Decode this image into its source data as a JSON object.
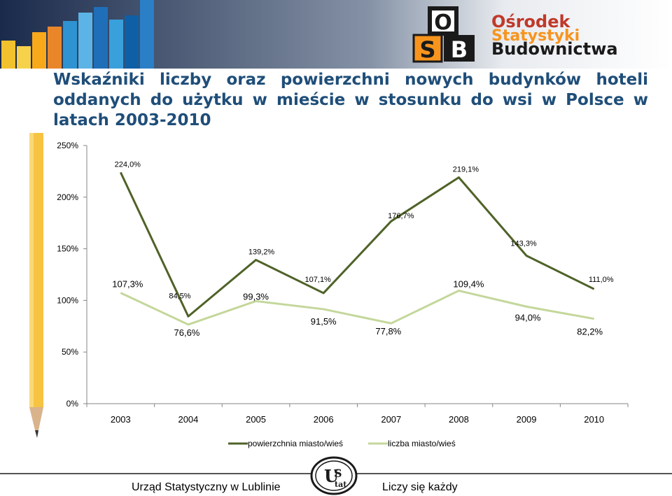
{
  "header": {
    "logo_text": [
      "Ośrodek",
      "Statystyki",
      "Budownictwa"
    ],
    "logo_letters": [
      "O",
      "S",
      "B"
    ]
  },
  "title": "Wskaźniki liczby oraz powierzchni nowych budynków hoteli oddanych do użytku w mieście w stosunku do wsi w Polsce w latach 2003-2010",
  "chart_data": {
    "type": "line",
    "categories": [
      "2003",
      "2004",
      "2005",
      "2006",
      "2007",
      "2008",
      "2009",
      "2010"
    ],
    "ylim": [
      0,
      250
    ],
    "yticks": [
      "0%",
      "50%",
      "100%",
      "150%",
      "200%",
      "250%"
    ],
    "ytick_values": [
      0,
      50,
      100,
      150,
      200,
      250
    ],
    "grid": false,
    "legend_position": "bottom",
    "series": [
      {
        "name": "powierzchnia miasto/wieś",
        "color": "#4f6228",
        "values": [
          224.0,
          84.5,
          139.2,
          107.1,
          176.7,
          219.1,
          143.3,
          111.0
        ],
        "labels": [
          "224,0%",
          "84,5%",
          "139,2%",
          "107,1%",
          "176,7%",
          "219,1%",
          "143,3%",
          "111,0%"
        ]
      },
      {
        "name": "liczba miasto/wieś",
        "color": "#c4d79b",
        "values": [
          107.3,
          76.6,
          99.3,
          91.5,
          77.8,
          109.4,
          94.0,
          82.2
        ],
        "labels": [
          "107,3%",
          "76,6%",
          "99,3%",
          "91,5%",
          "77,8%",
          "109,4%",
          "94,0%",
          "82,2%"
        ]
      }
    ]
  },
  "footer": {
    "left": "Urząd Statystyczny w Lublinie",
    "right": "Liczy się każdy",
    "logo_letters": [
      "U",
      "S",
      "tat"
    ]
  }
}
